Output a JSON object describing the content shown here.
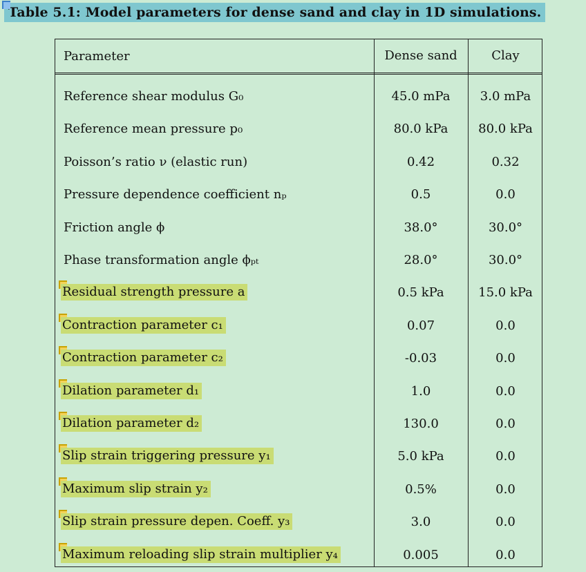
{
  "caption": "Table 5.1: Model parameters for dense sand and clay in 1D simulations.",
  "headers": {
    "parameter": "Parameter",
    "dense_sand": "Dense sand",
    "clay": "Clay"
  },
  "rows": [
    {
      "parameter": "Reference shear modulus G₀",
      "dense_sand": "45.0 mPa",
      "clay": "3.0 mPa",
      "highlighted": false
    },
    {
      "parameter": "Reference mean pressure p₀",
      "dense_sand": "80.0 kPa",
      "clay": "80.0 kPa",
      "highlighted": false
    },
    {
      "parameter": "Poisson’s ratio ν (elastic run)",
      "dense_sand": "0.42",
      "clay": "0.32",
      "highlighted": false
    },
    {
      "parameter": "Pressure dependence coefficient nₚ",
      "dense_sand": "0.5",
      "clay": "0.0",
      "highlighted": false
    },
    {
      "parameter": "Friction angle ϕ",
      "dense_sand": "38.0°",
      "clay": "30.0°",
      "highlighted": false
    },
    {
      "parameter": "Phase transformation angle ϕₚₜ",
      "dense_sand": "28.0°",
      "clay": "30.0°",
      "highlighted": false
    },
    {
      "parameter": "Residual strength pressure a",
      "dense_sand": "0.5 kPa",
      "clay": "15.0 kPa",
      "highlighted": true
    },
    {
      "parameter": "Contraction parameter c₁",
      "dense_sand": "0.07",
      "clay": "0.0",
      "highlighted": true
    },
    {
      "parameter": "Contraction parameter c₂",
      "dense_sand": "-0.03",
      "clay": "0.0",
      "highlighted": true
    },
    {
      "parameter": "Dilation parameter d₁",
      "dense_sand": "1.0",
      "clay": "0.0",
      "highlighted": true
    },
    {
      "parameter": "Dilation parameter d₂",
      "dense_sand": "130.0",
      "clay": "0.0",
      "highlighted": true
    },
    {
      "parameter": "Slip strain triggering pressure y₁",
      "dense_sand": "5.0 kPa",
      "clay": "0.0",
      "highlighted": true
    },
    {
      "parameter": "Maximum slip strain y₂",
      "dense_sand": "0.5%",
      "clay": "0.0",
      "highlighted": true
    },
    {
      "parameter": "Slip strain pressure depen. Coeff. y₃",
      "dense_sand": "3.0",
      "clay": "0.0",
      "highlighted": true
    },
    {
      "parameter": "Maximum reloading slip strain multiplier y₄",
      "dense_sand": "0.005",
      "clay": "0.0",
      "highlighted": true
    }
  ],
  "colors": {
    "background": "#cdebd4",
    "caption_highlight": "#7fc7cf",
    "row_highlight": "#c9dc74"
  }
}
